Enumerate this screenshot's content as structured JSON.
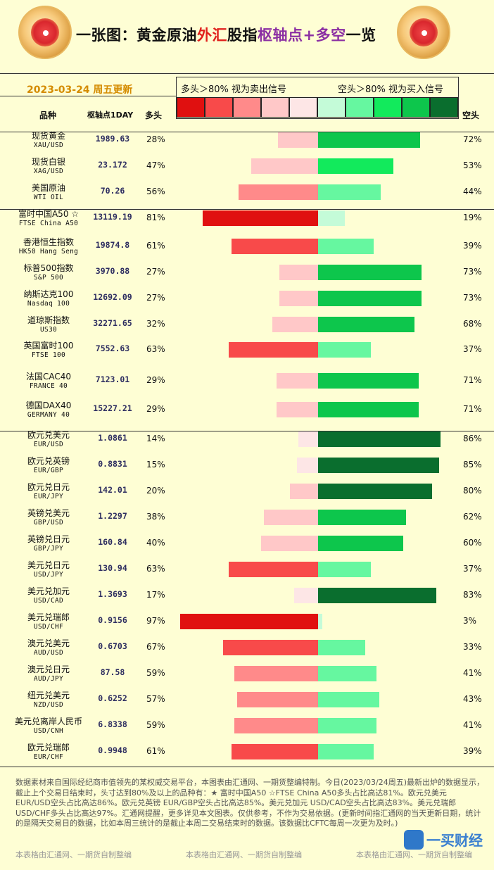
{
  "header": {
    "title_a": "一张图：黄金原油",
    "title_b": "外汇",
    "title_c": "股指",
    "title_d": "枢轴点+多空",
    "title_e": "一览",
    "date": "2023-03-24 周五更新"
  },
  "legend": {
    "left_text": "多头＞80% 视为卖出信号",
    "right_text": "空头＞80% 视为买入信号",
    "swatch_colors": [
      "#e01010",
      "#f84a4a",
      "#ff8a8a",
      "#ffc8c8",
      "#fde6e6",
      "#c4fbd8",
      "#66f7a0",
      "#12ea5c",
      "#0dc64c",
      "#0a6e2e"
    ]
  },
  "columns": {
    "name": "品种",
    "pivot": "枢轴点1DAY",
    "long": "多头",
    "short": "空头"
  },
  "chart_data": {
    "type": "bar",
    "series": [
      {
        "name": "多头"
      },
      {
        "name": "空头"
      }
    ],
    "rows": [
      {
        "name": "现货黄金",
        "code": "XAU/USD",
        "pivot": "1989.63",
        "long": 28,
        "short": 72
      },
      {
        "name": "现货白银",
        "code": "XAG/USD",
        "pivot": "23.172",
        "long": 47,
        "short": 53
      },
      {
        "name": "美国原油",
        "code": "WTI OIL",
        "pivot": "70.26",
        "long": 56,
        "short": 44
      },
      {
        "name": "富时中国A50 ☆",
        "code": "FTSE China A50",
        "pivot": "13119.19",
        "long": 81,
        "short": 19
      },
      {
        "name": "香港恒生指数",
        "code": "HK50 Hang Seng",
        "pivot": "19874.8",
        "long": 61,
        "short": 39
      },
      {
        "name": "标普500指数",
        "code": "S&P 500",
        "pivot": "3970.88",
        "long": 27,
        "short": 73
      },
      {
        "name": "纳斯达克100",
        "code": "Nasdaq 100",
        "pivot": "12692.09",
        "long": 27,
        "short": 73
      },
      {
        "name": "道琼斯指数",
        "code": "US30",
        "pivot": "32271.65",
        "long": 32,
        "short": 68
      },
      {
        "name": "英国富时100",
        "code": "FTSE 100",
        "pivot": "7552.63",
        "long": 63,
        "short": 37
      },
      {
        "name": "法国CAC40",
        "code": "FRANCE 40",
        "pivot": "7123.01",
        "long": 29,
        "short": 71
      },
      {
        "name": "德国DAX40",
        "code": "GERMANY 40",
        "pivot": "15227.21",
        "long": 29,
        "short": 71
      },
      {
        "name": "欧元兑美元",
        "code": "EUR/USD",
        "pivot": "1.0861",
        "long": 14,
        "short": 86
      },
      {
        "name": "欧元兑英镑",
        "code": "EUR/GBP",
        "pivot": "0.8831",
        "long": 15,
        "short": 85
      },
      {
        "name": "欧元兑日元",
        "code": "EUR/JPY",
        "pivot": "142.01",
        "long": 20,
        "short": 80
      },
      {
        "name": "英镑兑美元",
        "code": "GBP/USD",
        "pivot": "1.2297",
        "long": 38,
        "short": 62
      },
      {
        "name": "英镑兑日元",
        "code": "GBP/JPY",
        "pivot": "160.84",
        "long": 40,
        "short": 60
      },
      {
        "name": "美元兑日元",
        "code": "USD/JPY",
        "pivot": "130.94",
        "long": 63,
        "short": 37
      },
      {
        "name": "美元兑加元",
        "code": "USD/CAD",
        "pivot": "1.3693",
        "long": 17,
        "short": 83
      },
      {
        "name": "美元兑瑞郎",
        "code": "USD/CHF",
        "pivot": "0.9156",
        "long": 97,
        "short": 3
      },
      {
        "name": "澳元兑美元",
        "code": "AUD/USD",
        "pivot": "0.6703",
        "long": 67,
        "short": 33
      },
      {
        "name": "澳元兑日元",
        "code": "AUD/JPY",
        "pivot": "87.58",
        "long": 59,
        "short": 41
      },
      {
        "name": "纽元兑美元",
        "code": "NZD/USD",
        "pivot": "0.6252",
        "long": 57,
        "short": 43
      },
      {
        "name": "美元兑离岸人民币",
        "code": "USD/CNH",
        "pivot": "6.8338",
        "long": 59,
        "short": 41
      },
      {
        "name": "欧元兑瑞郎",
        "code": "EUR/CHF",
        "pivot": "0.9948",
        "long": 61,
        "short": 39
      }
    ]
  },
  "footer": {
    "note": "数据素材来自国际经纪商市值领先的某权威交易平台，本图表由汇通网、一期货整编特制。今日(2023/03/24周五)最新出炉的数据显示，截止上个交易日结束时，头寸达到80%及以上的品种有：★ 富时中国A50 ☆FTSE China A50多头占比高达81%。欧元兑美元 EUR/USD空头占比高达86%。欧元兑英镑 EUR/GBP空头占比高达85%。美元兑加元 USD/CAD空头占比高达83%。美元兑瑞郎 USD/CHF多头占比高达97%。汇通网提醒，更多详见本文图表。仅供参考，不作为交易依据。(更新时间指汇通网的当天更新日期，统计的是隔天交易日的数据，比如本周三统计的是截止本周二交易结束时的数据。该数据比CFTC每周一次更为及时。)",
    "credit": "本表格由汇通网、一期货自制整编",
    "watermark": "一买财经"
  }
}
